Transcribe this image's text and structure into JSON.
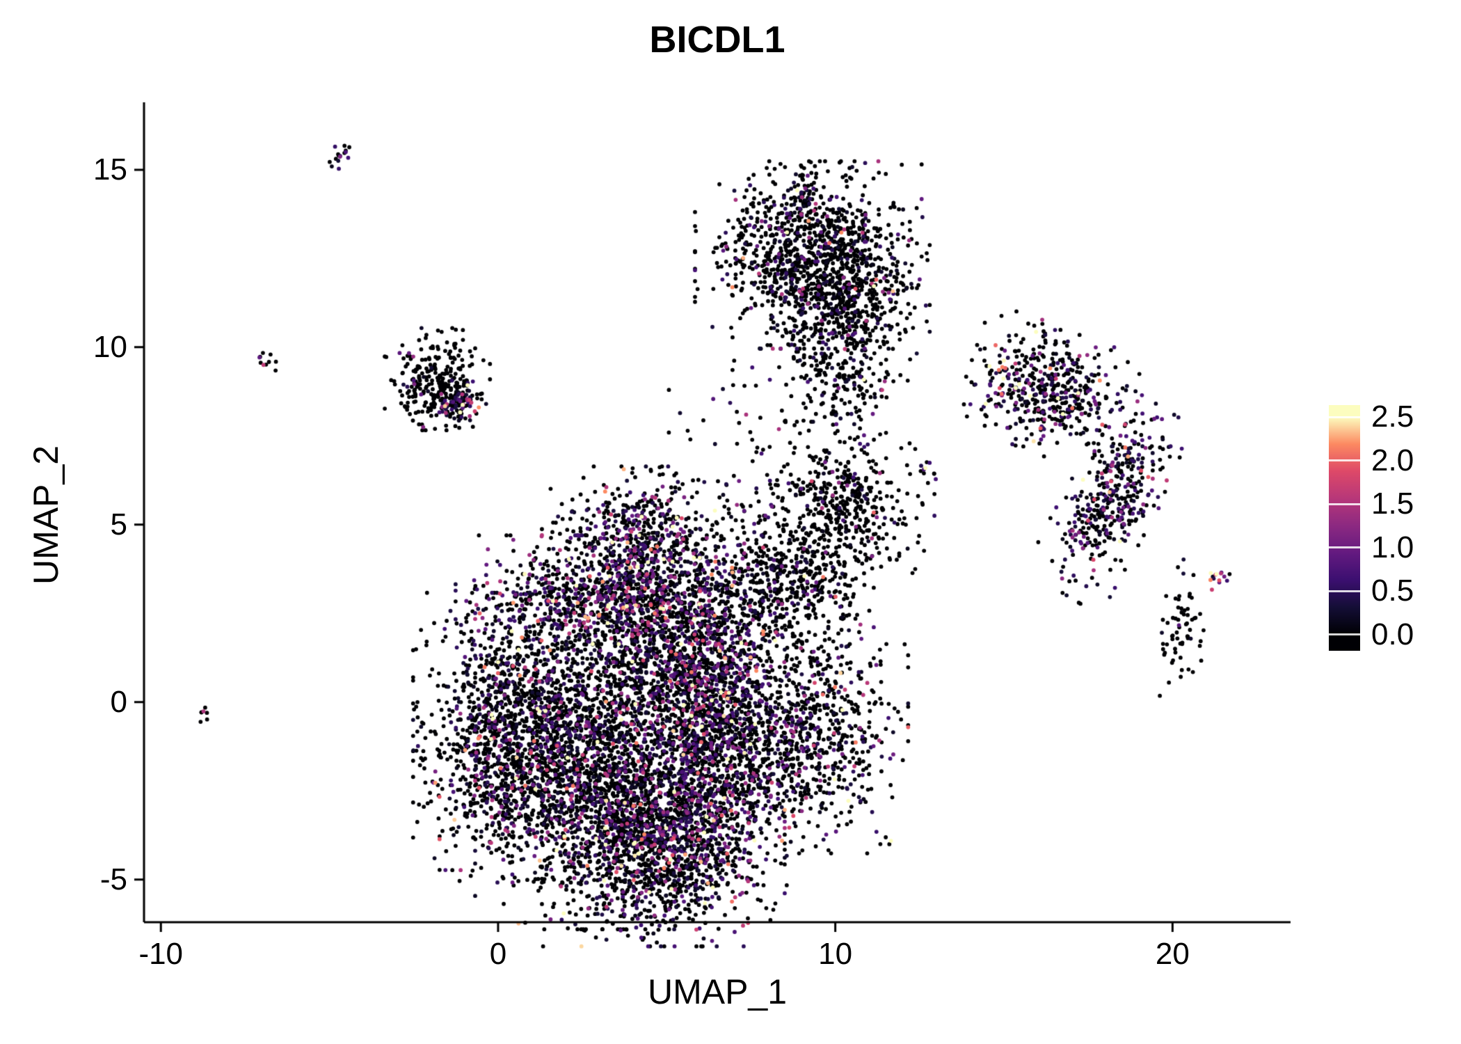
{
  "title": "BICDL1",
  "x_axis": {
    "label": "UMAP_1",
    "tick_labels": [
      "-10",
      "0",
      "10",
      "20"
    ],
    "tick_values": [
      -10,
      0,
      10,
      20
    ],
    "range": [
      -10.5,
      23.5
    ]
  },
  "y_axis": {
    "label": "UMAP_2",
    "tick_labels": [
      "15",
      "10",
      "5",
      "0",
      "-5"
    ],
    "tick_values": [
      15,
      10,
      5,
      0,
      -5
    ],
    "range": [
      -6.2,
      16.9
    ]
  },
  "colorbar": {
    "tick_labels": [
      "2.5",
      "2.0",
      "1.5",
      "1.0",
      "0.5",
      "0.0"
    ],
    "tick_values": [
      2.5,
      2.0,
      1.5,
      1.0,
      0.5,
      0.0
    ],
    "min": 0.0,
    "max": 2.5
  },
  "chart_data": {
    "type": "scatter",
    "title": "BICDL1",
    "xlabel": "UMAP_1",
    "ylabel": "UMAP_2",
    "xlim": [
      -10.5,
      23.5
    ],
    "ylim": [
      -6.2,
      16.9
    ],
    "grid": false,
    "legend_position": "right",
    "color_scale": {
      "name": "magma",
      "domain": [
        0,
        2.5
      ],
      "stops": [
        "#000004",
        "#140e36",
        "#3b0f70",
        "#641a80",
        "#8c2981",
        "#b73779",
        "#de4968",
        "#fc8961",
        "#fcfdbf"
      ]
    },
    "point_radius_px": 2.9,
    "seed": 42,
    "clusters": [
      {
        "name": "central-left",
        "cx": 0.6,
        "cy": -1.0,
        "rx": 1.3,
        "ry": 1.7,
        "rot": 0,
        "n": 1500,
        "expr_frac": 0.28,
        "expr_scale": 0.55
      },
      {
        "name": "central-mid",
        "cx": 3.4,
        "cy": -1.6,
        "rx": 1.7,
        "ry": 2.0,
        "rot": 0,
        "n": 2000,
        "expr_frac": 0.3,
        "expr_scale": 0.6
      },
      {
        "name": "central-bottom",
        "cx": 4.9,
        "cy": -4.0,
        "rx": 1.5,
        "ry": 1.2,
        "rot": 0,
        "n": 1300,
        "expr_frac": 0.38,
        "expr_scale": 0.7
      },
      {
        "name": "central-right-band",
        "cx": 6.4,
        "cy": -0.6,
        "rx": 0.9,
        "ry": 1.9,
        "rot": 0,
        "n": 1000,
        "expr_frac": 0.42,
        "expr_scale": 0.65
      },
      {
        "name": "upper-band",
        "cx": 3.3,
        "cy": 2.9,
        "rx": 1.9,
        "ry": 0.75,
        "rot": 0,
        "n": 950,
        "expr_frac": 0.45,
        "expr_scale": 0.75
      },
      {
        "name": "head",
        "cx": 4.3,
        "cy": 4.6,
        "rx": 1.25,
        "ry": 0.85,
        "rot": 0,
        "n": 550,
        "expr_frac": 0.4,
        "expr_scale": 0.7
      },
      {
        "name": "mid-bridge",
        "cx": 5.6,
        "cy": 1.4,
        "rx": 1.1,
        "ry": 1.2,
        "rot": 0,
        "n": 600,
        "expr_frac": 0.3,
        "expr_scale": 0.6
      },
      {
        "name": "right-lobe",
        "cx": 8.8,
        "cy": -0.9,
        "rx": 1.4,
        "ry": 1.4,
        "rot": 0,
        "n": 950,
        "expr_frac": 0.25,
        "expr_scale": 0.6
      },
      {
        "name": "right-arm",
        "cx": 8.5,
        "cy": 3.4,
        "rx": 1.1,
        "ry": 0.9,
        "rot": 0,
        "n": 500,
        "expr_frac": 0.2,
        "expr_scale": 0.55
      },
      {
        "name": "s-cluster",
        "cx": 10.3,
        "cy": 5.5,
        "rx": 1.1,
        "ry": 1.0,
        "rot": 0,
        "n": 450,
        "expr_frac": 0.12,
        "expr_scale": 0.5
      },
      {
        "name": "top-main",
        "cx": 9.2,
        "cy": 12.6,
        "rx": 1.4,
        "ry": 1.1,
        "rot": 0,
        "n": 950,
        "expr_frac": 0.18,
        "expr_scale": 0.6
      },
      {
        "name": "top-lower",
        "cx": 10.4,
        "cy": 11.0,
        "rx": 1.0,
        "ry": 1.2,
        "rot": 0,
        "n": 550,
        "expr_frac": 0.15,
        "expr_scale": 0.55
      },
      {
        "name": "top-tip",
        "cx": 9.0,
        "cy": 14.2,
        "rx": 0.22,
        "ry": 0.45,
        "rot": 0,
        "n": 45,
        "expr_frac": 0.35,
        "expr_scale": 0.6
      },
      {
        "name": "top-tail",
        "cx": 10.2,
        "cy": 9.0,
        "rx": 0.6,
        "ry": 0.9,
        "rot": 0,
        "n": 90,
        "expr_frac": 0.15,
        "expr_scale": 0.5
      },
      {
        "name": "left-mid",
        "cx": -1.8,
        "cy": 9.1,
        "rx": 0.65,
        "ry": 0.6,
        "rot": 0,
        "n": 280,
        "expr_frac": 0.08,
        "expr_scale": 0.5
      },
      {
        "name": "left-mid-hot",
        "cx": -1.2,
        "cy": 8.4,
        "rx": 0.3,
        "ry": 0.25,
        "rot": 0,
        "n": 80,
        "expr_frac": 0.55,
        "expr_scale": 0.8
      },
      {
        "name": "tiny-topleft",
        "cx": -4.7,
        "cy": 15.4,
        "rx": 0.16,
        "ry": 0.22,
        "rot": 0,
        "n": 16,
        "expr_frac": 0.5,
        "expr_scale": 0.7
      },
      {
        "name": "tiny-left",
        "cx": -6.9,
        "cy": 9.7,
        "rx": 0.13,
        "ry": 0.15,
        "rot": 0,
        "n": 10,
        "expr_frac": 0.4,
        "expr_scale": 0.7
      },
      {
        "name": "tiny-far-left",
        "cx": -8.7,
        "cy": -0.4,
        "rx": 0.12,
        "ry": 0.12,
        "rot": 0,
        "n": 7,
        "expr_frac": 0.3,
        "expr_scale": 0.6
      },
      {
        "name": "right-upper",
        "cx": 16.3,
        "cy": 8.8,
        "rx": 1.0,
        "ry": 0.75,
        "rot": -20,
        "n": 480,
        "expr_frac": 0.35,
        "expr_scale": 0.65
      },
      {
        "name": "right-mid",
        "cx": 18.2,
        "cy": 5.7,
        "rx": 0.55,
        "ry": 1.25,
        "rot": -30,
        "n": 400,
        "expr_frac": 0.4,
        "expr_scale": 0.65
      },
      {
        "name": "right-small",
        "cx": 20.2,
        "cy": 2.1,
        "rx": 0.3,
        "ry": 0.8,
        "rot": 0,
        "n": 65,
        "expr_frac": 0.12,
        "expr_scale": 0.5
      },
      {
        "name": "right-sliver",
        "cx": 21.4,
        "cy": 3.6,
        "rx": 0.14,
        "ry": 0.28,
        "rot": -40,
        "n": 14,
        "expr_frac": 0.95,
        "expr_scale": 1.5
      },
      {
        "name": "pair-mid-right",
        "cx": 12.8,
        "cy": 6.5,
        "rx": 0.28,
        "ry": 0.14,
        "rot": 0,
        "n": 12,
        "expr_frac": 0.6,
        "expr_scale": 0.9
      },
      {
        "name": "sparse-bridge",
        "cx": 7.6,
        "cy": 7.3,
        "rx": 1.3,
        "ry": 1.3,
        "rot": 0,
        "n": 70,
        "expr_frac": 0.2,
        "expr_scale": 0.5
      }
    ]
  }
}
